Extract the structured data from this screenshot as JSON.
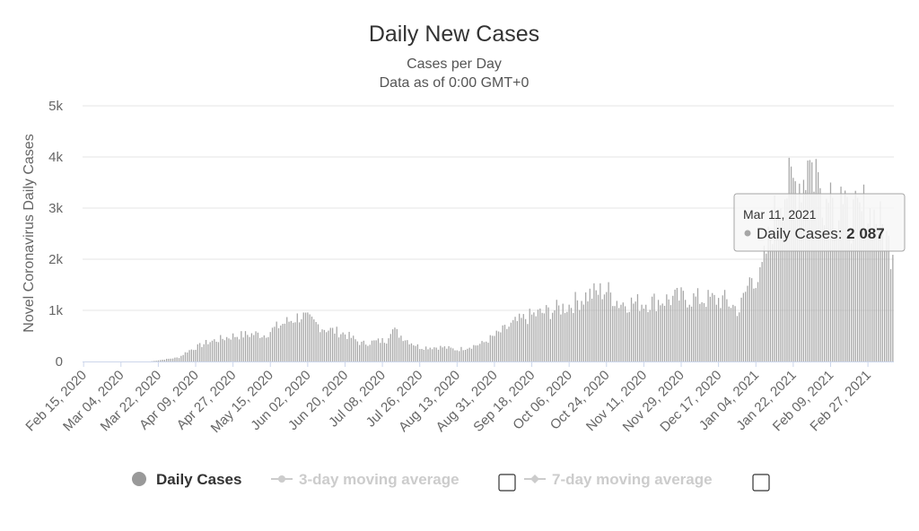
{
  "chart_data": {
    "type": "bar",
    "title": "Daily New Cases",
    "subtitle_lines": [
      "Cases per Day",
      "Data as of 0:00 GMT+0"
    ],
    "ylabel": "Novel Coronavirus Daily Cases",
    "ylim": [
      0,
      5000
    ],
    "y_ticks": [
      {
        "value": 0,
        "label": "0"
      },
      {
        "value": 1000,
        "label": "1k"
      },
      {
        "value": 2000,
        "label": "2k"
      },
      {
        "value": 3000,
        "label": "3k"
      },
      {
        "value": 4000,
        "label": "4k"
      },
      {
        "value": 5000,
        "label": "5k"
      }
    ],
    "x_start": "2020-02-15",
    "x_end": "2021-03-11",
    "x_ticks": [
      "Feb 15, 2020",
      "Mar 04, 2020",
      "Mar 22, 2020",
      "Apr 09, 2020",
      "Apr 27, 2020",
      "May 15, 2020",
      "Jun 02, 2020",
      "Jun 20, 2020",
      "Jul 08, 2020",
      "Jul 26, 2020",
      "Aug 13, 2020",
      "Aug 31, 2020",
      "Sep 18, 2020",
      "Oct 06, 2020",
      "Oct 24, 2020",
      "Nov 11, 2020",
      "Nov 29, 2020",
      "Dec 17, 2020",
      "Jan 04, 2021",
      "Jan 22, 2021",
      "Feb 09, 2021",
      "Feb 27, 2021"
    ],
    "series": [
      {
        "name": "Daily Cases",
        "color": "#a6a6a6",
        "trend_points": [
          [
            "2020-02-15",
            0
          ],
          [
            "2020-03-18",
            0
          ],
          [
            "2020-03-25",
            40
          ],
          [
            "2020-04-01",
            80
          ],
          [
            "2020-04-05",
            200
          ],
          [
            "2020-04-15",
            380
          ],
          [
            "2020-04-27",
            500
          ],
          [
            "2020-05-08",
            540
          ],
          [
            "2020-05-12",
            520
          ],
          [
            "2020-05-20",
            720
          ],
          [
            "2020-05-30",
            900
          ],
          [
            "2020-06-02",
            820
          ],
          [
            "2020-06-10",
            650
          ],
          [
            "2020-06-20",
            540
          ],
          [
            "2020-06-28",
            350
          ],
          [
            "2020-07-03",
            380
          ],
          [
            "2020-07-10",
            420
          ],
          [
            "2020-07-12",
            650
          ],
          [
            "2020-07-20",
            420
          ],
          [
            "2020-07-26",
            280
          ],
          [
            "2020-08-06",
            280
          ],
          [
            "2020-08-13",
            230
          ],
          [
            "2020-08-25",
            350
          ],
          [
            "2020-08-31",
            500
          ],
          [
            "2020-09-10",
            760
          ],
          [
            "2020-09-18",
            900
          ],
          [
            "2020-09-28",
            1000
          ],
          [
            "2020-10-06",
            1100
          ],
          [
            "2020-10-15",
            1300
          ],
          [
            "2020-10-24",
            1400
          ],
          [
            "2020-10-30",
            1150
          ],
          [
            "2020-11-11",
            1150
          ],
          [
            "2020-11-29",
            1250
          ],
          [
            "2020-12-10",
            1220
          ],
          [
            "2020-12-20",
            1200
          ],
          [
            "2020-12-27",
            1000
          ],
          [
            "2021-01-02",
            1700
          ],
          [
            "2021-01-06",
            1600
          ],
          [
            "2021-01-12",
            2700
          ],
          [
            "2021-01-16",
            3300
          ],
          [
            "2021-01-28",
            3600
          ],
          [
            "2021-01-31",
            3800
          ],
          [
            "2021-02-05",
            3300
          ],
          [
            "2021-02-09",
            3100
          ],
          [
            "2021-02-18",
            2800
          ],
          [
            "2021-02-27",
            2900
          ],
          [
            "2021-03-04",
            2800
          ],
          [
            "2021-03-11",
            2087
          ]
        ],
        "peaks": [
          [
            "2021-01-29",
            3930
          ],
          [
            "2021-01-30",
            3940
          ],
          [
            "2021-02-02",
            3960
          ],
          [
            "2021-02-09",
            3500
          ],
          [
            "2021-02-14",
            3420
          ],
          [
            "2021-02-25",
            3460
          ]
        ]
      },
      {
        "name": "3-day moving average",
        "color": "#cccccc",
        "disabled": true
      },
      {
        "name": "7-day moving average",
        "color": "#cccccc",
        "disabled": true
      }
    ],
    "tooltip": {
      "date": "Mar 11, 2021",
      "series_name": "Daily Cases:",
      "value_text": "2 087"
    },
    "legend_placement": "bottom",
    "grid": true
  }
}
